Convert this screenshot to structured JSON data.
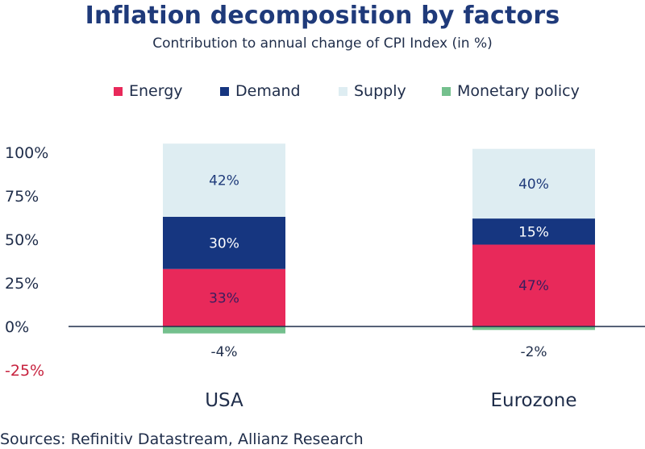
{
  "chart_data": {
    "type": "bar",
    "stacked": true,
    "title": "Inflation decomposition by factors",
    "subtitle": "Contribution to annual change of CPI Index (in %)",
    "categories": [
      "USA",
      "Eurozone"
    ],
    "series": [
      {
        "name": "Energy",
        "color": "#e8295a",
        "values": [
          33,
          47
        ],
        "labels": [
          "33%",
          "47%"
        ]
      },
      {
        "name": "Demand",
        "color": "#163680",
        "values": [
          30,
          15
        ],
        "labels": [
          "30%",
          "15%"
        ]
      },
      {
        "name": "Supply",
        "color": "#deedf2",
        "values": [
          42,
          40
        ],
        "labels": [
          "42%",
          "40%"
        ]
      },
      {
        "name": "Monetary policy",
        "color": "#74c08d",
        "values": [
          -4,
          -2
        ],
        "labels": [
          "-4%",
          "-2%"
        ]
      }
    ],
    "yticks": [
      {
        "value": 100,
        "label": "100%",
        "color": "#1f2d4a"
      },
      {
        "value": 75,
        "label": "75%",
        "color": "#1f2d4a"
      },
      {
        "value": 50,
        "label": "50%",
        "color": "#1f2d4a"
      },
      {
        "value": 25,
        "label": "25%",
        "color": "#1f2d4a"
      },
      {
        "value": 0,
        "label": "0%",
        "color": "#1f2d4a"
      },
      {
        "value": -25,
        "label": "-25%",
        "color": "#c7233f"
      }
    ],
    "ylim": [
      -25,
      100
    ],
    "xlabel": "",
    "ylabel": "",
    "legend_position": "top"
  },
  "source": "Sources: Refinitiv Datastream, Allianz Research"
}
